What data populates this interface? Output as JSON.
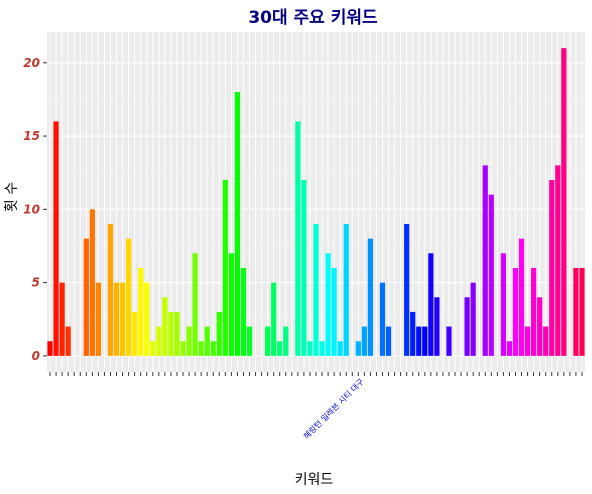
{
  "chart_data": {
    "type": "bar",
    "title": "30대 주요 키워드",
    "xlabel": "키워드",
    "ylabel": "횟 수",
    "ylim": [
      -1.1,
      22.1
    ],
    "yticks": [
      0,
      5,
      10,
      15,
      20
    ],
    "grid": true,
    "legend": "none",
    "annotations": [
      "혜링턴 일레븐 시티 대구"
    ],
    "values": [
      1,
      16,
      5,
      2,
      0,
      0,
      8,
      10,
      5,
      0,
      9,
      5,
      5,
      8,
      3,
      6,
      5,
      1,
      2,
      4,
      3,
      3,
      1,
      2,
      7,
      1,
      2,
      1,
      3,
      12,
      7,
      18,
      6,
      2,
      0,
      0,
      2,
      5,
      1,
      2,
      0,
      16,
      12,
      1,
      9,
      1,
      7,
      6,
      1,
      9,
      0,
      1,
      2,
      8,
      0,
      5,
      2,
      0,
      0,
      9,
      3,
      2,
      2,
      7,
      4,
      0,
      2,
      0,
      0,
      4,
      5,
      0,
      13,
      11,
      0,
      7,
      1,
      6,
      8,
      2,
      6,
      4,
      2,
      12,
      13,
      21,
      0,
      6,
      6
    ]
  }
}
